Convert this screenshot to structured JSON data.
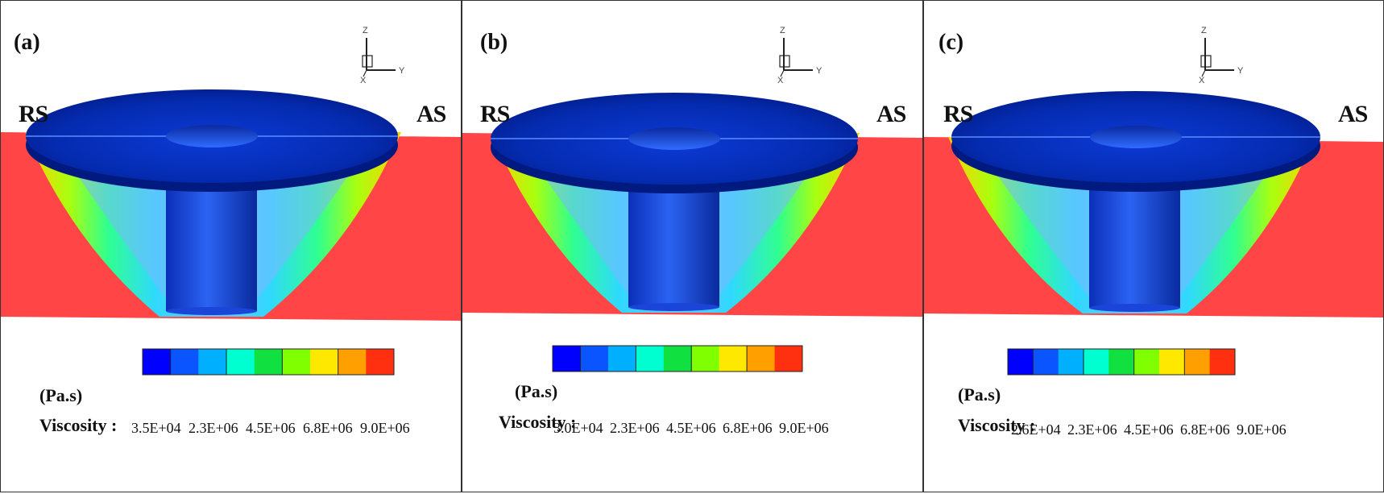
{
  "panels": [
    {
      "label": "(a)",
      "rs": "RS",
      "as": "AS",
      "legend": {
        "unit": "(Pa.s)",
        "title": "Viscosity :",
        "ticks": [
          "3.5E+04",
          "2.3E+06",
          "4.5E+06",
          "6.8E+06",
          "9.0E+06"
        ]
      }
    },
    {
      "label": "(b)",
      "rs": "RS",
      "as": "AS",
      "legend": {
        "unit": "(Pa.s)",
        "title": "Viscosity :",
        "ticks": [
          "3.0E+04",
          "2.3E+06",
          "4.5E+06",
          "6.8E+06",
          "9.0E+06"
        ]
      }
    },
    {
      "label": "(c)",
      "rs": "RS",
      "as": "AS",
      "legend": {
        "unit": "(Pa.s)",
        "title": "Viscosity :",
        "ticks": [
          "2.6E+04",
          "2.3E+06",
          "4.5E+06",
          "6.8E+06",
          "9.0E+06"
        ]
      }
    }
  ],
  "axes_triad": {
    "z": "Z",
    "y": "Y",
    "x": "X"
  },
  "colors": {
    "base_red": "#ff4545",
    "tool_dark": "#001e9e",
    "tool_mid": "#1a4ae8",
    "legend_bands": [
      "#0000ff",
      "#0a55ff",
      "#00b0ff",
      "#00ffd0",
      "#10e040",
      "#80ff00",
      "#ffe800",
      "#ffa000",
      "#ff3010"
    ]
  }
}
